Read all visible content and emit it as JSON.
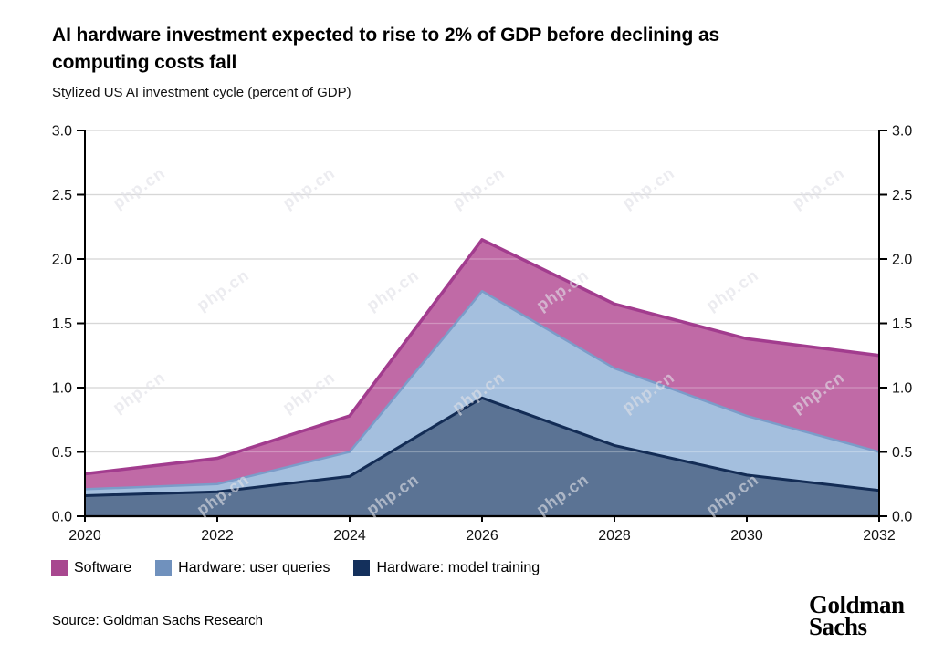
{
  "header": {
    "title": "AI hardware investment expected to rise to 2% of GDP before declining as computing costs fall",
    "title_lines": [
      "AI hardware investment expected to rise to 2% of GDP before declining as",
      "computing costs fall"
    ],
    "subtitle": "Stylized US AI investment cycle (percent of GDP)"
  },
  "chart_data": {
    "type": "area",
    "stacked": true,
    "title": "AI hardware investment expected to rise to 2% of GDP before declining as computing costs fall",
    "subtitle": "Stylized US AI investment cycle (percent of GDP)",
    "x": [
      2020,
      2022,
      2024,
      2026,
      2028,
      2030,
      2032
    ],
    "x_tick_labels": [
      "2020",
      "2022",
      "2024",
      "2026",
      "2028",
      "2030",
      "2032"
    ],
    "y_ticks": [
      0,
      0.5,
      1,
      1.5,
      2,
      2.5,
      3
    ],
    "y_tick_labels": [
      "0.0",
      "0.5",
      "1.0",
      "1.5",
      "2.0",
      "2.5",
      "3.0"
    ],
    "ylim": [
      0,
      3
    ],
    "ylabel": "percent of GDP",
    "grid": true,
    "grid_color": "#c8c8c8",
    "axis_color": "#000000",
    "legend_position": "bottom",
    "series": [
      {
        "name": "Hardware: model training",
        "values": [
          0.16,
          0.19,
          0.31,
          0.92,
          0.55,
          0.32,
          0.2
        ],
        "stacked_top": [
          0.16,
          0.19,
          0.31,
          0.92,
          0.55,
          0.32,
          0.2
        ],
        "fill": "#5b7394",
        "stroke": "#132c55"
      },
      {
        "name": "Hardware: user queries",
        "values": [
          0.05,
          0.06,
          0.19,
          0.83,
          0.6,
          0.46,
          0.3
        ],
        "stacked_top": [
          0.21,
          0.25,
          0.5,
          1.75,
          1.15,
          0.78,
          0.5
        ],
        "fill": "#a4bfde",
        "stroke": "#7b9cc9"
      },
      {
        "name": "Software",
        "values": [
          0.12,
          0.2,
          0.28,
          0.4,
          0.5,
          0.6,
          0.75
        ],
        "stacked_top": [
          0.33,
          0.45,
          0.78,
          2.15,
          1.65,
          1.38,
          1.25
        ],
        "fill": "#c06aa6",
        "stroke": "#a23c8e"
      }
    ]
  },
  "legend": {
    "items": [
      {
        "label": "Software",
        "color": "#a8478f"
      },
      {
        "label": "Hardware: user queries",
        "color": "#7091bd"
      },
      {
        "label": "Hardware: model training",
        "color": "#14305c"
      }
    ]
  },
  "source": {
    "text": "Source: Goldman Sachs Research"
  },
  "logo": {
    "line1": "Goldman",
    "line2": "Sachs"
  },
  "watermark": {
    "text": "php.cn"
  }
}
